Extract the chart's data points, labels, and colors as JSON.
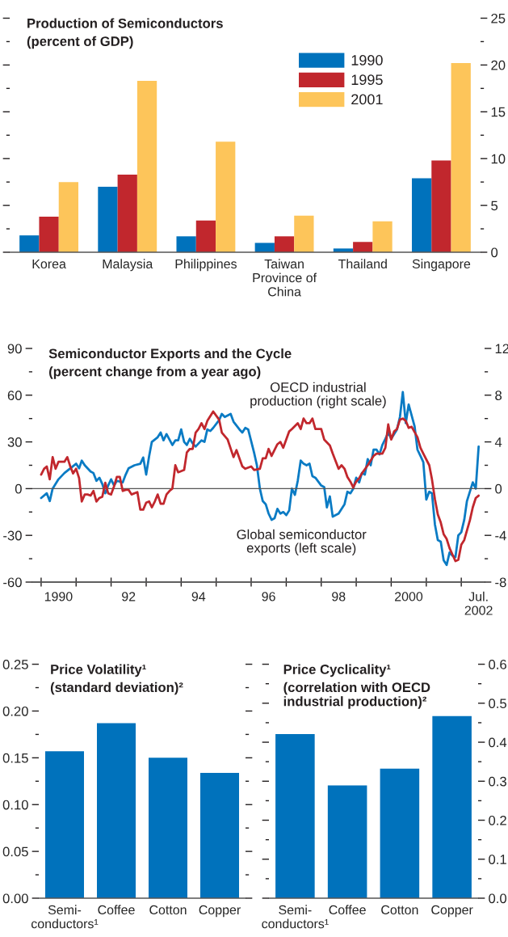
{
  "chart_data": [
    {
      "type": "bar",
      "title": "Production of Semiconductors",
      "subtitle": "(percent of GDP)",
      "categories": [
        "Korea",
        "Malaysia",
        "Philippines",
        "Taiwan\nProvince of\nChina",
        "Thailand",
        "Singapore"
      ],
      "series": [
        {
          "name": "1990",
          "color": "#0072bc",
          "axis": "y2",
          "values": [
            1.8,
            7.0,
            1.7,
            1.0,
            0.4,
            7.9
          ]
        },
        {
          "name": "1995",
          "color": "#c1272d",
          "axis": "y2",
          "values": [
            3.8,
            8.3,
            3.4,
            1.7,
            1.1,
            9.8
          ]
        },
        {
          "name": "2001",
          "color": "#fdc55a",
          "axis": "y2",
          "values": [
            7.5,
            18.3,
            11.8,
            3.9,
            3.3,
            20.2
          ]
        }
      ],
      "y2lim": [
        0,
        25
      ],
      "y2ticks": [
        0,
        {
          "value": 2.5,
          "label": null
        },
        5,
        {
          "value": 7.5,
          "label": null
        },
        10,
        {
          "value": 12.5,
          "label": null
        },
        15,
        {
          "value": 17.5,
          "label": null
        },
        20,
        {
          "value": 22.5,
          "label": null
        },
        25
      ],
      "legend": "top"
    },
    {
      "type": "line",
      "title": "Semiconductor Exports and the Cycle",
      "subtitle": "(percent change from a year ago)",
      "series": [
        {
          "name": "Global semiconductor\nexports (left scale)",
          "color": "#0a7bc4",
          "x": [
            "1990-01",
            "1990-03",
            "1990-04",
            "1990-05",
            "1990-07",
            "1990-09",
            "1990-11",
            "1991-01",
            "1991-02",
            "1991-03",
            "1991-04",
            "1991-06",
            "1991-07",
            "1991-08",
            "1991-09",
            "1991-10",
            "1991-11",
            "1991-12",
            "1992-01",
            "1992-02",
            "1992-03",
            "1992-05",
            "1992-06",
            "1992-07",
            "1992-09",
            "1992-11",
            "1992-12",
            "1993-01",
            "1993-02",
            "1993-03",
            "1993-05",
            "1993-06",
            "1993-07",
            "1993-08",
            "1993-10",
            "1993-11",
            "1993-12",
            "1994-01",
            "1994-02",
            "1994-03",
            "1994-04",
            "1994-05",
            "1994-06",
            "1994-08",
            "1994-09",
            "1994-10",
            "1994-11",
            "1994-12",
            "1995-02",
            "1995-03",
            "1995-04",
            "1995-06",
            "1995-07",
            "1995-09",
            "1995-10",
            "1995-11",
            "1995-12",
            "1996-02",
            "1996-03",
            "1996-04",
            "1996-05",
            "1996-06",
            "1996-07",
            "1996-08",
            "1996-09",
            "1996-10",
            "1996-11",
            "1996-12",
            "1997-01",
            "1997-02",
            "1997-03",
            "1997-04",
            "1997-05",
            "1997-06",
            "1997-07",
            "1997-08",
            "1997-09",
            "1997-10",
            "1997-11",
            "1998-01",
            "1998-02",
            "1998-03",
            "1998-04",
            "1998-05",
            "1998-07",
            "1998-08",
            "1998-09",
            "1998-10",
            "1998-11",
            "1998-12",
            "1999-01",
            "1999-02",
            "1999-03",
            "1999-04",
            "1999-05",
            "1999-06",
            "1999-07",
            "1999-08",
            "1999-09",
            "1999-10",
            "1999-11",
            "1999-12",
            "2000-01",
            "2000-03",
            "2000-04",
            "2000-05",
            "2000-06",
            "2000-07",
            "2000-09",
            "2000-10",
            "2000-11",
            "2000-12",
            "2001-01",
            "2001-02",
            "2001-03",
            "2001-04",
            "2001-05",
            "2001-06",
            "2001-07",
            "2001-08",
            "2001-09",
            "2001-10",
            "2001-11",
            "2001-12",
            "2002-01",
            "2002-02",
            "2002-03",
            "2002-05",
            "2002-06",
            "2002-07"
          ],
          "values": [
            -6,
            -3,
            -8,
            0,
            6,
            10,
            13,
            16,
            13,
            18,
            15,
            11,
            10,
            5,
            7,
            3,
            -3,
            2,
            6,
            2,
            5,
            4,
            9,
            13,
            15,
            16,
            20,
            9,
            21,
            30,
            33,
            36,
            31,
            35,
            28,
            31,
            31,
            38,
            30,
            28,
            32,
            29,
            27,
            31,
            30,
            38,
            37,
            39,
            44,
            48,
            46,
            48,
            43,
            38,
            36,
            39,
            38,
            23,
            15,
            0,
            -8,
            -10,
            -16,
            -20,
            -19,
            -13,
            -16,
            -15,
            -17,
            -14,
            0,
            -4,
            5,
            18,
            16,
            15,
            16,
            8,
            7,
            2,
            1,
            -12,
            -5,
            -18,
            -16,
            -13,
            -10,
            -2,
            -3,
            0,
            7,
            4,
            10,
            9,
            19,
            15,
            25,
            25,
            22,
            28,
            32,
            36,
            32,
            38,
            46,
            62,
            42,
            54,
            40,
            25,
            21,
            17,
            -7,
            -2,
            -3,
            -23,
            -33,
            -34,
            -46,
            -49,
            -41,
            -43,
            -44,
            -30,
            -28,
            -20,
            -8,
            4,
            0,
            27
          ]
        },
        {
          "name": "OECD industrial\nproduction (right scale)",
          "color": "#c1272d",
          "axis": "y2",
          "x": [
            "1990-01",
            "1990-02",
            "1990-03",
            "1990-04",
            "1990-05",
            "1990-06",
            "1990-07",
            "1990-08",
            "1990-09",
            "1990-10",
            "1990-11",
            "1990-12",
            "1991-01",
            "1991-02",
            "1991-03",
            "1991-04",
            "1991-05",
            "1991-06",
            "1991-07",
            "1991-08",
            "1991-09",
            "1991-10",
            "1991-11",
            "1991-12",
            "1992-01",
            "1992-02",
            "1992-03",
            "1992-04",
            "1992-05",
            "1992-06",
            "1992-07",
            "1992-08",
            "1992-10",
            "1992-11",
            "1992-12",
            "1993-01",
            "1993-02",
            "1993-03",
            "1993-04",
            "1993-05",
            "1993-06",
            "1993-07",
            "1993-08",
            "1993-09",
            "1993-10",
            "1993-11",
            "1993-12",
            "1994-02",
            "1994-03",
            "1994-04",
            "1994-05",
            "1994-06",
            "1994-07",
            "1994-08",
            "1994-09",
            "1994-10",
            "1994-12",
            "1995-02",
            "1995-03",
            "1995-05",
            "1995-07",
            "1995-08",
            "1995-10",
            "1995-11",
            "1996-01",
            "1996-02",
            "1996-04",
            "1996-05",
            "1996-06",
            "1996-07",
            "1996-08",
            "1996-10",
            "1996-11",
            "1996-12",
            "1997-02",
            "1997-03",
            "1997-05",
            "1997-06",
            "1997-07",
            "1997-08",
            "1997-09",
            "1997-10",
            "1997-11",
            "1998-01",
            "1998-02",
            "1998-04",
            "1998-05",
            "1998-07",
            "1998-08",
            "1998-09",
            "1998-10",
            "1998-11",
            "1998-12",
            "1999-01",
            "1999-02",
            "1999-03",
            "1999-05",
            "1999-07",
            "1999-08",
            "1999-10",
            "1999-11",
            "1999-12",
            "2000-01",
            "2000-02",
            "2000-03",
            "2000-04",
            "2000-05",
            "2000-06",
            "2000-07",
            "2000-08",
            "2000-10",
            "2000-11",
            "2000-12",
            "2001-02",
            "2001-03",
            "2001-04",
            "2001-05",
            "2001-06",
            "2001-07",
            "2001-08",
            "2001-09",
            "2001-11",
            "2001-12",
            "2002-01",
            "2002-02",
            "2002-04",
            "2002-05",
            "2002-06",
            "2002-07"
          ],
          "values": [
            1.2,
            1.7,
            1.9,
            0.8,
            2.7,
            1.7,
            2.3,
            2.3,
            2.3,
            2.7,
            1.9,
            1.3,
            1.7,
            0.9,
            -1.1,
            -0.5,
            -0.5,
            -0.6,
            -0.2,
            -1.1,
            -0.8,
            -0.7,
            0.5,
            -0.4,
            -0.5,
            0.2,
            1.0,
            1.0,
            -0.2,
            -0.1,
            -0.1,
            -0.5,
            -0.3,
            -1.8,
            -1.8,
            -1.2,
            -1.1,
            -1.6,
            -1.1,
            -0.5,
            -1.3,
            -1.3,
            -0.5,
            -0.2,
            0.0,
            2.0,
            1.4,
            1.6,
            3.1,
            3.4,
            3.4,
            4.8,
            5.1,
            5.6,
            5.1,
            5.8,
            6.6,
            5.9,
            4.8,
            4.2,
            2.7,
            3.3,
            1.9,
            1.7,
            1.9,
            1.6,
            1.7,
            2.6,
            2.6,
            3.4,
            2.8,
            3.8,
            4.0,
            3.5,
            4.9,
            5.1,
            5.6,
            5.1,
            6.0,
            5.6,
            5.6,
            6.0,
            5.1,
            5.1,
            4.2,
            3.7,
            3.0,
            1.7,
            2.0,
            1.7,
            1.0,
            0.6,
            0.1,
            0.6,
            0.9,
            1.3,
            2.0,
            2.8,
            3.0,
            3.0,
            3.5,
            5.5,
            4.2,
            4.9,
            5.1,
            5.9,
            6.0,
            5.8,
            5.2,
            5.3,
            4.4,
            3.5,
            3.0,
            2.0,
            0.8,
            -0.9,
            -2.2,
            -2.9,
            -3.9,
            -4.3,
            -5.1,
            -6.2,
            -6.1,
            -4.8,
            -4.4,
            -2.7,
            -1.6,
            -0.8,
            -0.6
          ]
        }
      ],
      "xlim": [
        "1989-10",
        "2002-09"
      ],
      "xticks": [
        {
          "value": "1990-01",
          "label": null
        },
        {
          "value": "1990-07",
          "label": "1990"
        },
        {
          "value": "1991-01",
          "label": null
        },
        {
          "value": "1992-01",
          "label": null
        },
        {
          "value": "1992-07",
          "label": "92"
        },
        {
          "value": "1993-01",
          "label": null
        },
        {
          "value": "1994-01",
          "label": null
        },
        {
          "value": "1994-07",
          "label": "94"
        },
        {
          "value": "1995-01",
          "label": null
        },
        {
          "value": "1996-01",
          "label": null
        },
        {
          "value": "1996-07",
          "label": "96"
        },
        {
          "value": "1997-01",
          "label": null
        },
        {
          "value": "1998-01",
          "label": null
        },
        {
          "value": "1998-07",
          "label": "98"
        },
        {
          "value": "1999-01",
          "label": null
        },
        {
          "value": "2000-01",
          "label": null
        },
        {
          "value": "2000-07",
          "label": "2000"
        },
        {
          "value": "2001-01",
          "label": null
        },
        {
          "value": "2002-01",
          "label": null
        },
        {
          "value": "2002-07",
          "label": "Jul.\n2002"
        }
      ],
      "ylim": [
        -60,
        90
      ],
      "yticks": [
        -60,
        {
          "value": -45,
          "label": null
        },
        -30,
        {
          "value": -15,
          "label": null
        },
        0,
        {
          "value": 15,
          "label": null
        },
        30,
        {
          "value": 45,
          "label": null
        },
        60,
        {
          "value": 75,
          "label": null
        },
        90
      ],
      "y2lim": [
        -8,
        12
      ],
      "y2ticks": [
        -8,
        {
          "value": -6,
          "label": null
        },
        -4,
        {
          "value": -2,
          "label": null
        },
        0,
        {
          "value": 2,
          "label": null
        },
        4,
        {
          "value": 6,
          "label": null
        },
        8,
        {
          "value": 10,
          "label": null
        },
        12
      ],
      "ref_lines": [
        {
          "axis": "y",
          "value": 0,
          "color": "#555555"
        }
      ]
    },
    {
      "type": "bar",
      "title": "Price Volatility¹",
      "subtitle": "(standard deviation)²",
      "categories": [
        "Semi-\nconductors¹",
        "Coffee",
        "Cotton",
        "Copper"
      ],
      "series": [
        {
          "color": "#0072bc",
          "values": [
            0.157,
            0.187,
            0.15,
            0.134
          ]
        }
      ],
      "ylim": [
        0,
        0.25
      ],
      "yticks": [
        {
          "value": 0,
          "label": "0.00"
        },
        {
          "value": 0.025,
          "label": null
        },
        {
          "value": 0.05,
          "label": "0.05"
        },
        {
          "value": 0.075,
          "label": null
        },
        {
          "value": 0.1,
          "label": "0.10"
        },
        {
          "value": 0.125,
          "label": null
        },
        {
          "value": 0.15,
          "label": "0.15"
        },
        {
          "value": 0.175,
          "label": null
        },
        {
          "value": 0.2,
          "label": "0.20"
        },
        {
          "value": 0.225,
          "label": null
        },
        {
          "value": 0.25,
          "label": "0.25"
        }
      ]
    },
    {
      "type": "bar",
      "title": "Price Cyclicality¹",
      "subtitle": "(correlation with OECD\nindustrial production)²",
      "categories": [
        "Semi-\nconductors¹",
        "Coffee",
        "Cotton",
        "Copper"
      ],
      "series": [
        {
          "color": "#0072bc",
          "axis": "y2",
          "values": [
            0.421,
            0.289,
            0.332,
            0.467
          ]
        }
      ],
      "y2lim": [
        0,
        0.6
      ],
      "y2ticks": [
        {
          "value": 0,
          "label": "0.0"
        },
        {
          "value": 0.05,
          "label": null
        },
        0.1,
        {
          "value": 0.15,
          "label": null
        },
        0.2,
        {
          "value": 0.25,
          "label": null
        },
        0.3,
        {
          "value": 0.35,
          "label": null
        },
        0.4,
        {
          "value": 0.45,
          "label": null
        },
        0.5,
        {
          "value": 0.55,
          "label": null
        },
        0.6
      ]
    }
  ]
}
